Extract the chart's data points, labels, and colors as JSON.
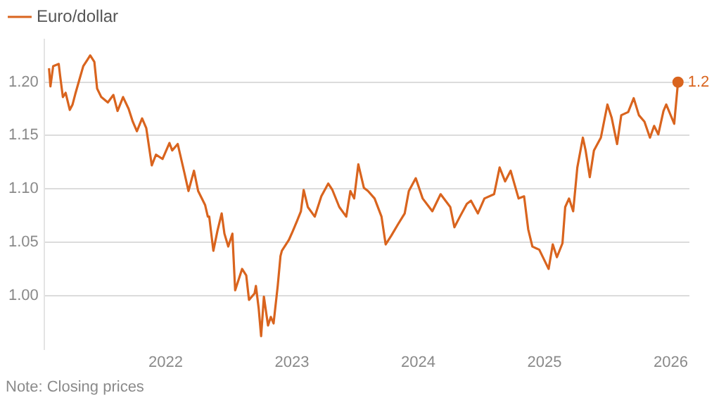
{
  "chart_data": {
    "type": "line",
    "legend": "top left",
    "marker": "none",
    "grid": "y",
    "xlim": [
      "2021-01-15",
      "2026-02-24"
    ],
    "xticks": [
      "2022",
      "2023",
      "2024",
      "2025",
      "2026"
    ],
    "ylim": [
      0.95,
      1.24
    ],
    "yticks": [
      {
        "value": 1,
        "label": "1.00"
      },
      1.05,
      {
        "value": 1.1,
        "label": "1.10"
      },
      1.15,
      {
        "value": 1.2,
        "label": "1.20"
      }
    ],
    "annotations": [
      "Note: Closing prices",
      {
        "text": "1.2",
        "x": "2026-01-22",
        "y": 1.2
      }
    ],
    "x": [
      "2021-01-29",
      "2021-02-02",
      "2021-02-10",
      "2021-02-26",
      "2021-03-02",
      "2021-03-10",
      "2021-03-18",
      "2021-03-30",
      "2021-04-07",
      "2021-04-15",
      "2021-04-30",
      "2021-05-08",
      "2021-05-20",
      "2021-05-28",
      "2021-06-09",
      "2021-06-17",
      "2021-06-29",
      "2021-07-18",
      "2021-08-03",
      "2021-08-15",
      "2021-08-31",
      "2021-09-16",
      "2021-09-28",
      "2021-10-10",
      "2021-10-25",
      "2021-11-06",
      "2021-11-22",
      "2021-12-04",
      "2021-12-23",
      "2022-01-12",
      "2022-01-20",
      "2022-02-05",
      "2022-02-25",
      "2022-03-08",
      "2022-03-24",
      "2022-04-05",
      "2022-04-25",
      "2022-05-03",
      "2022-05-07",
      "2022-05-19",
      "2022-05-31",
      "2022-06-12",
      "2022-06-20",
      "2022-07-01",
      "2022-07-13",
      "2022-07-21",
      "2022-08-06",
      "2022-08-10",
      "2022-08-22",
      "2022-08-30",
      "2022-09-15",
      "2022-09-19",
      "2022-09-27",
      "2022-10-04",
      "2022-10-12",
      "2022-10-24",
      "2022-11-01",
      "2022-11-09",
      "2022-11-21",
      "2022-11-29",
      "2022-12-03",
      "2022-12-23",
      "2023-01-03",
      "2023-01-16",
      "2023-01-27",
      "2023-02-04",
      "2023-02-16",
      "2023-03-08",
      "2023-03-27",
      "2023-04-16",
      "2023-04-28",
      "2023-05-18",
      "2023-06-07",
      "2023-06-19",
      "2023-06-30",
      "2023-07-12",
      "2023-07-28",
      "2023-08-09",
      "2023-08-28",
      "2023-09-17",
      "2023-09-29",
      "2023-10-15",
      "2023-11-04",
      "2023-11-23",
      "2023-12-05",
      "2023-12-25",
      "2024-01-14",
      "2024-02-11",
      "2024-03-06",
      "2024-04-03",
      "2024-04-15",
      "2024-05-01",
      "2024-05-21",
      "2024-06-02",
      "2024-06-22",
      "2024-07-11",
      "2024-08-08",
      "2024-08-24",
      "2024-09-09",
      "2024-09-25",
      "2024-10-18",
      "2024-11-03",
      "2024-11-15",
      "2024-11-27",
      "2024-12-17",
      "2025-01-13",
      "2025-01-25",
      "2025-02-06",
      "2025-02-22",
      "2025-03-02",
      "2025-03-13",
      "2025-03-25",
      "2025-04-06",
      "2025-04-22",
      "2025-04-30",
      "2025-05-12",
      "2025-05-24",
      "2025-06-13",
      "2025-07-02",
      "2025-07-14",
      "2025-07-30",
      "2025-08-11",
      "2025-08-31",
      "2025-09-16",
      "2025-10-01",
      "2025-10-17",
      "2025-11-02",
      "2025-11-14",
      "2025-11-26",
      "2025-12-11",
      "2025-12-19",
      "2026-01-11",
      "2026-01-22"
    ],
    "series": [
      {
        "name": "Euro/dollar",
        "color": "#d9641e",
        "values": [
          1.213,
          1.196,
          1.215,
          1.217,
          1.206,
          1.186,
          1.19,
          1.174,
          1.179,
          1.189,
          1.206,
          1.215,
          1.221,
          1.225,
          1.219,
          1.194,
          1.186,
          1.181,
          1.188,
          1.173,
          1.186,
          1.175,
          1.163,
          1.154,
          1.166,
          1.157,
          1.122,
          1.132,
          1.128,
          1.143,
          1.136,
          1.142,
          1.114,
          1.098,
          1.117,
          1.098,
          1.085,
          1.074,
          1.074,
          1.042,
          1.061,
          1.077,
          1.058,
          1.046,
          1.058,
          1.005,
          1.021,
          1.025,
          1.019,
          0.996,
          1.002,
          1.009,
          0.988,
          0.962,
          0.999,
          0.972,
          0.98,
          0.974,
          1.009,
          1.037,
          1.042,
          1.052,
          1.06,
          1.07,
          1.079,
          1.099,
          1.083,
          1.074,
          1.093,
          1.105,
          1.099,
          1.083,
          1.074,
          1.098,
          1.091,
          1.123,
          1.101,
          1.098,
          1.091,
          1.074,
          1.048,
          1.056,
          1.067,
          1.077,
          1.098,
          1.11,
          1.091,
          1.079,
          1.095,
          1.083,
          1.064,
          1.074,
          1.086,
          1.089,
          1.077,
          1.091,
          1.095,
          1.12,
          1.107,
          1.117,
          1.091,
          1.093,
          1.062,
          1.046,
          1.043,
          1.025,
          1.048,
          1.036,
          1.049,
          1.083,
          1.091,
          1.079,
          1.12,
          1.148,
          1.136,
          1.111,
          1.136,
          1.148,
          1.179,
          1.167,
          1.142,
          1.169,
          1.172,
          1.185,
          1.169,
          1.163,
          1.148,
          1.159,
          1.151,
          1.173,
          1.179,
          1.161,
          1.2
        ]
      }
    ]
  }
}
